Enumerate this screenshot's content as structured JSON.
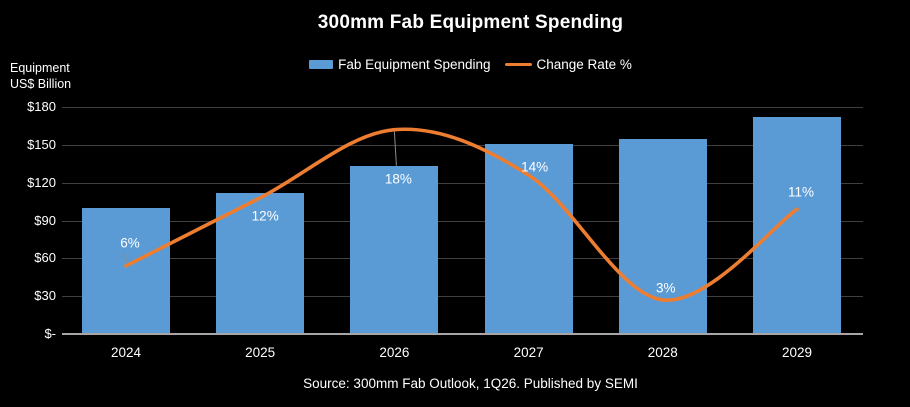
{
  "title": "300mm Fab Equipment Spending",
  "y_axis_title": {
    "line1": "Equipment",
    "line2": "US$ Billion"
  },
  "legend": {
    "items": [
      {
        "label": "Fab Equipment Spending",
        "marker": "bar-swatch",
        "color": "#5B9BD5"
      },
      {
        "label": "Change Rate %",
        "marker": "line-swatch",
        "color": "#ED7D31"
      }
    ],
    "position": "top"
  },
  "source": "Source: 300mm Fab Outlook, 1Q26. Published by SEMI",
  "colors": {
    "background": "#000000",
    "bar": "#5B9BD5",
    "line": "#ED7D31",
    "grid": "#3F3F3F",
    "axis": "#A6A6A6",
    "text": "#FFFFFF",
    "leader": "#8A8A8A"
  },
  "chart_data": {
    "type": "bar",
    "subtype": "combo-bar-line",
    "title": "300mm Fab Equipment Spending",
    "categories": [
      "2024",
      "2025",
      "2026",
      "2027",
      "2028",
      "2029"
    ],
    "series": [
      {
        "name": "Fab Equipment Spending",
        "type": "bar",
        "unit": "US$ Billion",
        "values": [
          100,
          112,
          133,
          151,
          155,
          172
        ]
      },
      {
        "name": "Change Rate %",
        "type": "line",
        "unit": "%",
        "values": [
          6,
          12,
          18,
          14,
          3,
          11
        ],
        "point_labels": [
          "6%",
          "12%",
          "18%",
          "14%",
          "3%",
          "11%"
        ]
      }
    ],
    "xlabel": "",
    "ylabel": "Equipment US$ Billion",
    "y_ticks": [
      {
        "label": "$180",
        "value": 180
      },
      {
        "label": "$150",
        "value": 150
      },
      {
        "label": "$120",
        "value": 120
      },
      {
        "label": "$90",
        "value": 90
      },
      {
        "label": "$60",
        "value": 60
      },
      {
        "label": "$30",
        "value": 30
      },
      {
        "label": "$-",
        "value": 0
      }
    ],
    "ylim": [
      0,
      180
    ],
    "secondary_ylim_implied": [
      0,
      20
    ],
    "grid": true,
    "legend_position": "top",
    "line_smoothing": true
  }
}
